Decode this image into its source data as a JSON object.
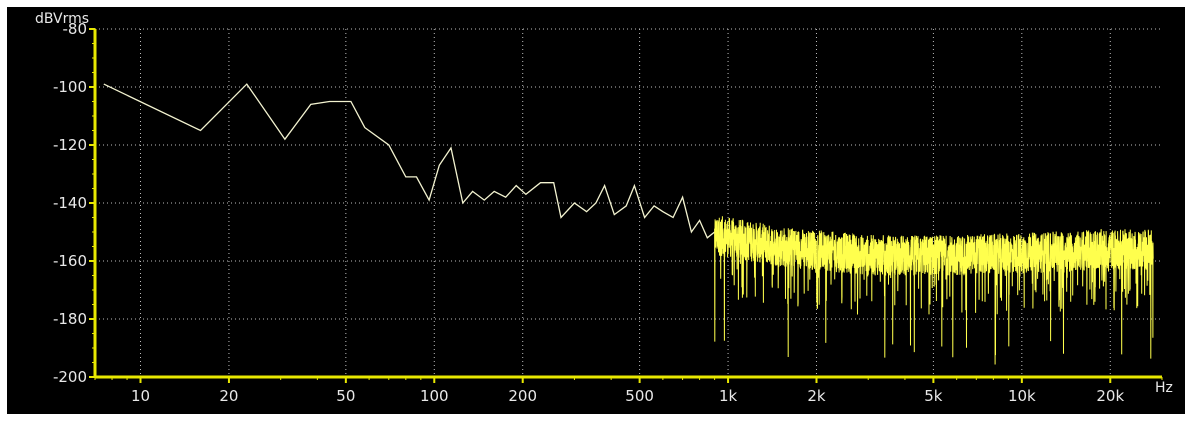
{
  "chart_data": {
    "type": "line",
    "title": "",
    "ylabel": "dBVrms",
    "xlabel": "Hz",
    "xscale": "log",
    "xlim": [
      7,
      30000
    ],
    "ylim": [
      -200,
      -80
    ],
    "grid": true,
    "colors": {
      "background": "#000000",
      "axis": "#e8e800",
      "trace": "#ffff4d",
      "grid": "#bdbdbd",
      "text": "#e8e8e8"
    },
    "x_ticks": [
      {
        "value": 10,
        "label": "10"
      },
      {
        "value": 20,
        "label": "20"
      },
      {
        "value": 50,
        "label": "50"
      },
      {
        "value": 100,
        "label": "100"
      },
      {
        "value": 200,
        "label": "200"
      },
      {
        "value": 500,
        "label": "500"
      },
      {
        "value": 1000,
        "label": "1k"
      },
      {
        "value": 2000,
        "label": "2k"
      },
      {
        "value": 5000,
        "label": "5k"
      },
      {
        "value": 10000,
        "label": "10k"
      },
      {
        "value": 20000,
        "label": "20k"
      }
    ],
    "y_ticks": [
      {
        "value": -80,
        "label": "-80"
      },
      {
        "value": -100,
        "label": "-100"
      },
      {
        "value": -120,
        "label": "-120"
      },
      {
        "value": -140,
        "label": "-140"
      },
      {
        "value": -160,
        "label": "-160"
      },
      {
        "value": -180,
        "label": "-180"
      },
      {
        "value": -200,
        "label": "-200"
      }
    ],
    "series": [
      {
        "x": [
          7.5,
          16,
          23,
          31,
          38,
          44,
          52,
          58,
          70,
          80,
          87,
          96,
          104,
          114,
          125,
          135,
          148,
          160,
          175,
          190,
          205,
          230,
          255,
          270,
          300,
          330,
          355,
          380,
          410,
          450,
          480,
          520,
          560,
          600,
          650,
          700,
          750,
          800,
          850,
          900
        ],
        "y": [
          -99,
          -115,
          -99,
          -118,
          -106,
          -105,
          -105,
          -114,
          -120,
          -131,
          -131,
          -139,
          -127,
          -121,
          -140,
          -136,
          -139,
          -136,
          -138,
          -134,
          -137,
          -133,
          -133,
          -145,
          -140,
          -143,
          -140,
          -134,
          -144,
          -141,
          -134,
          -145,
          -141,
          -143,
          -145,
          -138,
          -150,
          -146,
          -152,
          -150
        ]
      }
    ],
    "noise_band": [
      {
        "x": 900,
        "mean": -151,
        "spread": 7,
        "dip_min": -168
      },
      {
        "x": 1500,
        "mean": -155,
        "spread": 7,
        "dip_min": -174
      },
      {
        "x": 3000,
        "mean": -158,
        "spread": 7,
        "dip_min": -178
      },
      {
        "x": 6000,
        "mean": -158,
        "spread": 7,
        "dip_min": -200
      },
      {
        "x": 12000,
        "mean": -157,
        "spread": 7,
        "dip_min": -180
      },
      {
        "x": 20000,
        "mean": -156,
        "spread": 7,
        "dip_min": -186
      },
      {
        "x": 28000,
        "mean": -156,
        "spread": 7,
        "dip_min": -184
      }
    ]
  }
}
